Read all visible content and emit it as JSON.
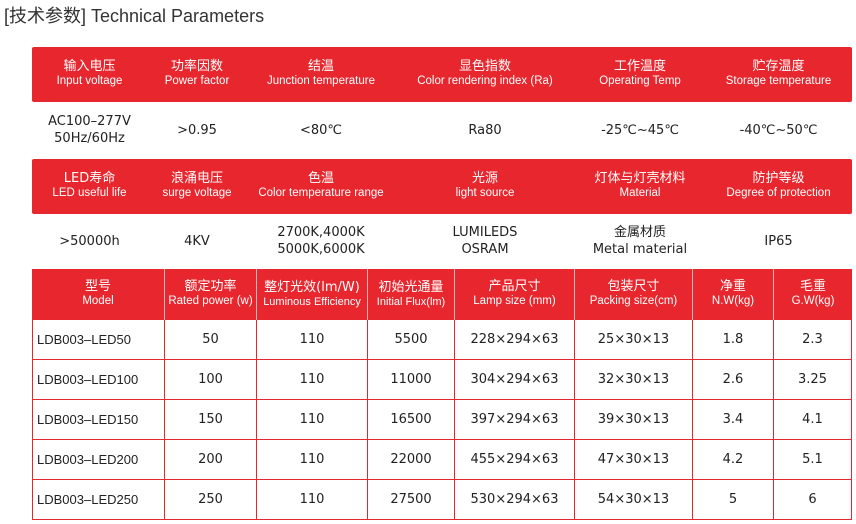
{
  "title": "[技术参数] Technical Parameters",
  "block1": {
    "headers": [
      {
        "cn": "输入电压",
        "en": "Input voltage"
      },
      {
        "cn": "功率因数",
        "en": "Power factor"
      },
      {
        "cn": "结温",
        "en": "Junction temperature"
      },
      {
        "cn": "显色指数",
        "en": "Color rendering index (Ra)"
      },
      {
        "cn": "工作温度",
        "en": "Operating Temp"
      },
      {
        "cn": "贮存温度",
        "en": "Storage temperature"
      }
    ],
    "values": [
      {
        "l1": "AC100–277V",
        "l2": "50Hz/60Hz"
      },
      {
        "l1": ">0.95",
        "l2": ""
      },
      {
        "l1": "<80℃",
        "l2": ""
      },
      {
        "l1": "Ra80",
        "l2": ""
      },
      {
        "l1": "-25℃~45℃",
        "l2": ""
      },
      {
        "l1": "-40℃~50℃",
        "l2": ""
      }
    ]
  },
  "block2": {
    "headers": [
      {
        "cn": "LED寿命",
        "en": "LED useful life"
      },
      {
        "cn": "浪涌电压",
        "en": "surge voltage"
      },
      {
        "cn": "色温",
        "en": "Color temperature range"
      },
      {
        "cn": "光源",
        "en": "light source"
      },
      {
        "cn": "灯体与灯壳材料",
        "en": "Material"
      },
      {
        "cn": "防护等级",
        "en": "Degree of protection"
      }
    ],
    "values": [
      {
        "l1": ">50000h",
        "l2": ""
      },
      {
        "l1": "4KV",
        "l2": ""
      },
      {
        "l1": "2700K,4000K",
        "l2": "5000K,6000K"
      },
      {
        "l1": "LUMILEDS",
        "l2": "OSRAM"
      },
      {
        "l1": "金属材质",
        "l2": "Metal material"
      },
      {
        "l1": "IP65",
        "l2": ""
      }
    ]
  },
  "table": {
    "headers": [
      {
        "cn": "型号",
        "en": "Model"
      },
      {
        "cn": "额定功率",
        "en": "Rated power (w)"
      },
      {
        "cn": "整灯光效(lm/W)",
        "en": "Luminous Efficiency"
      },
      {
        "cn": "初始光通量",
        "en": "Initial Flux(lm)"
      },
      {
        "cn": "产品尺寸",
        "en": "Lamp size  (mm)"
      },
      {
        "cn": "包装尺寸",
        "en": "Packing size(cm)"
      },
      {
        "cn": "净重",
        "en": "N.W(kg)"
      },
      {
        "cn": "毛重",
        "en": "G.W(kg)"
      }
    ],
    "rows": [
      [
        "LDB003–LED50",
        "50",
        "110",
        "5500",
        "228×294×63",
        "25×30×13",
        "1.8",
        "2.3"
      ],
      [
        "LDB003–LED100",
        "100",
        "110",
        "11000",
        "304×294×63",
        "32×30×13",
        "2.6",
        "3.25"
      ],
      [
        "LDB003–LED150",
        "150",
        "110",
        "16500",
        "397×294×63",
        "39×30×13",
        "3.4",
        "4.1"
      ],
      [
        "LDB003–LED200",
        "200",
        "110",
        "22000",
        "455×294×63",
        "47×30×13",
        "4.2",
        "5.1"
      ],
      [
        "LDB003–LED250",
        "250",
        "110",
        "27500",
        "530×294×63",
        "54×30×13",
        "5",
        "6"
      ]
    ]
  }
}
